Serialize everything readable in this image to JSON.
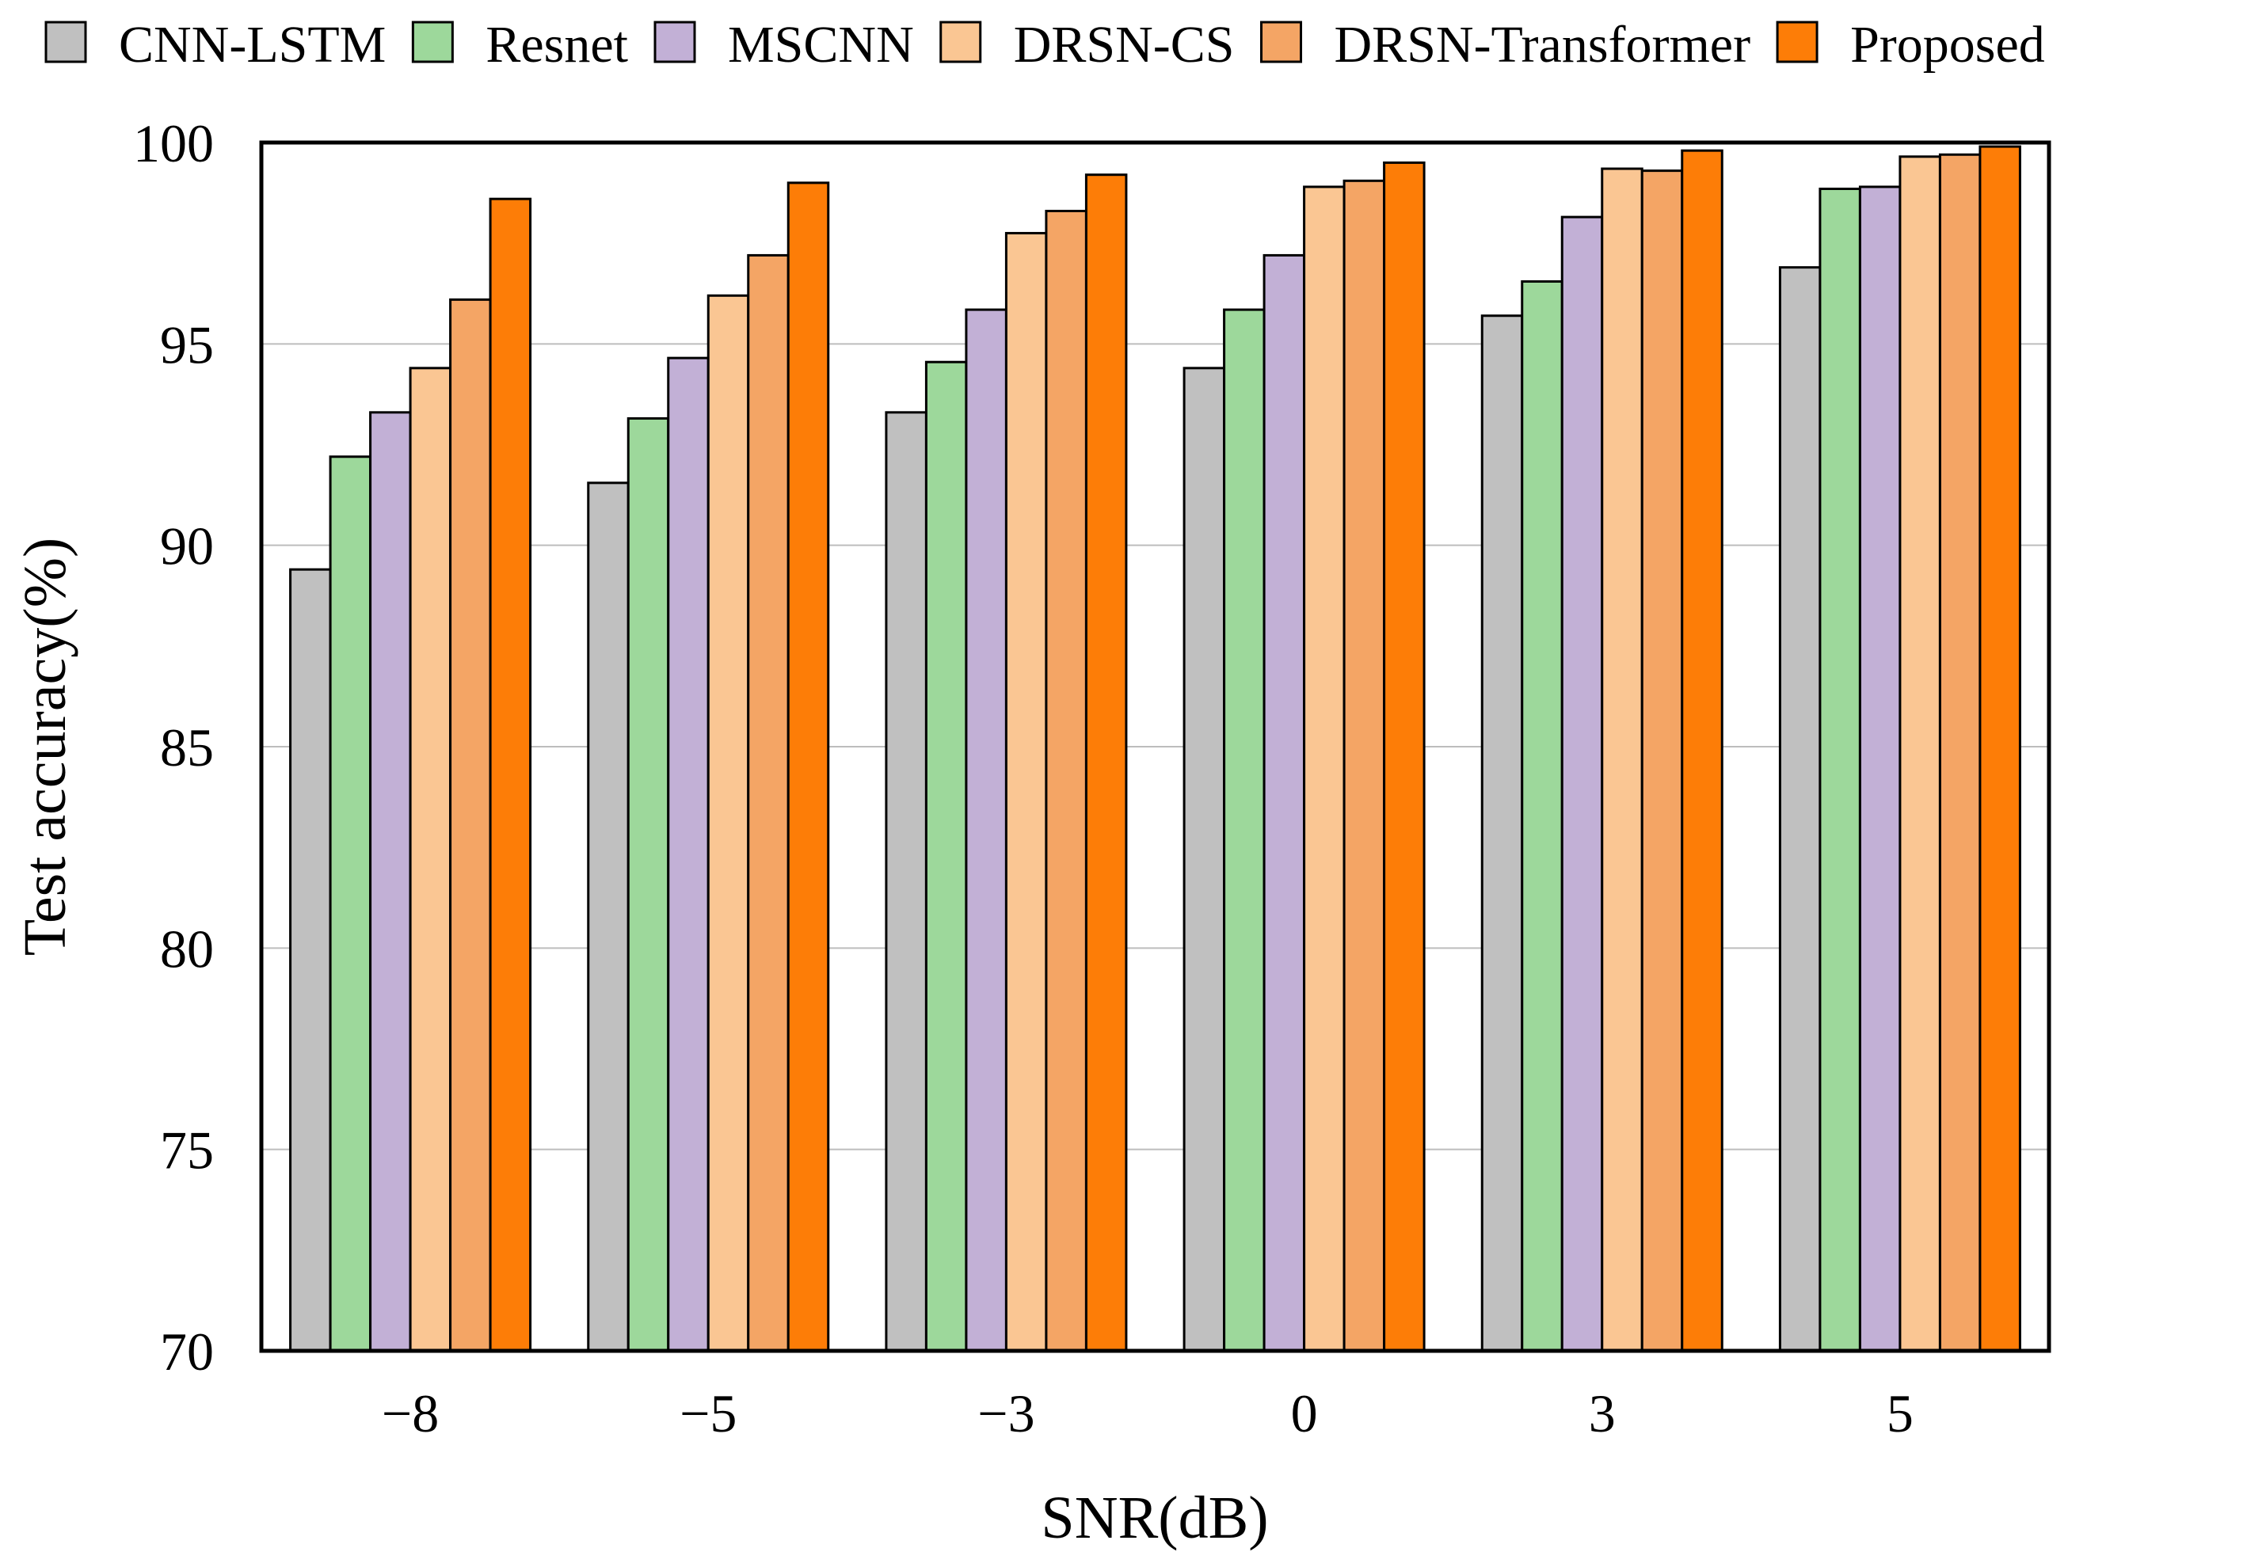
{
  "chart_data": {
    "type": "bar",
    "title": "",
    "xlabel": "SNR(dB)",
    "ylabel": "Test accuracy(%)",
    "ylim": [
      70,
      100
    ],
    "yticks": [
      70,
      75,
      80,
      85,
      90,
      95,
      100
    ],
    "grid": "horizontal",
    "legend_position": "top",
    "categories": [
      "−8",
      "−5",
      "−3",
      "0",
      "3",
      "5"
    ],
    "series": [
      {
        "name": "CNN-LSTM",
        "color": "#c0c0c0",
        "values": [
          89.4,
          91.55,
          93.3,
          94.4,
          95.7,
          96.9
        ]
      },
      {
        "name": "Resnet",
        "color": "#9dd89b",
        "values": [
          92.2,
          93.15,
          94.55,
          95.85,
          96.55,
          98.85
        ]
      },
      {
        "name": "MSCNN",
        "color": "#c2b0d6",
        "values": [
          93.3,
          94.65,
          95.85,
          97.2,
          98.15,
          98.9
        ]
      },
      {
        "name": "DRSN-CS",
        "color": "#fac693",
        "values": [
          94.4,
          96.2,
          97.75,
          98.9,
          99.35,
          99.65
        ]
      },
      {
        "name": "DRSN-Transformer",
        "color": "#f4a565",
        "values": [
          96.1,
          97.2,
          98.3,
          99.05,
          99.3,
          99.7
        ]
      },
      {
        "name": "Proposed",
        "color": "#fd7d07",
        "values": [
          98.6,
          99.0,
          99.2,
          99.5,
          99.8,
          99.9
        ]
      }
    ]
  }
}
